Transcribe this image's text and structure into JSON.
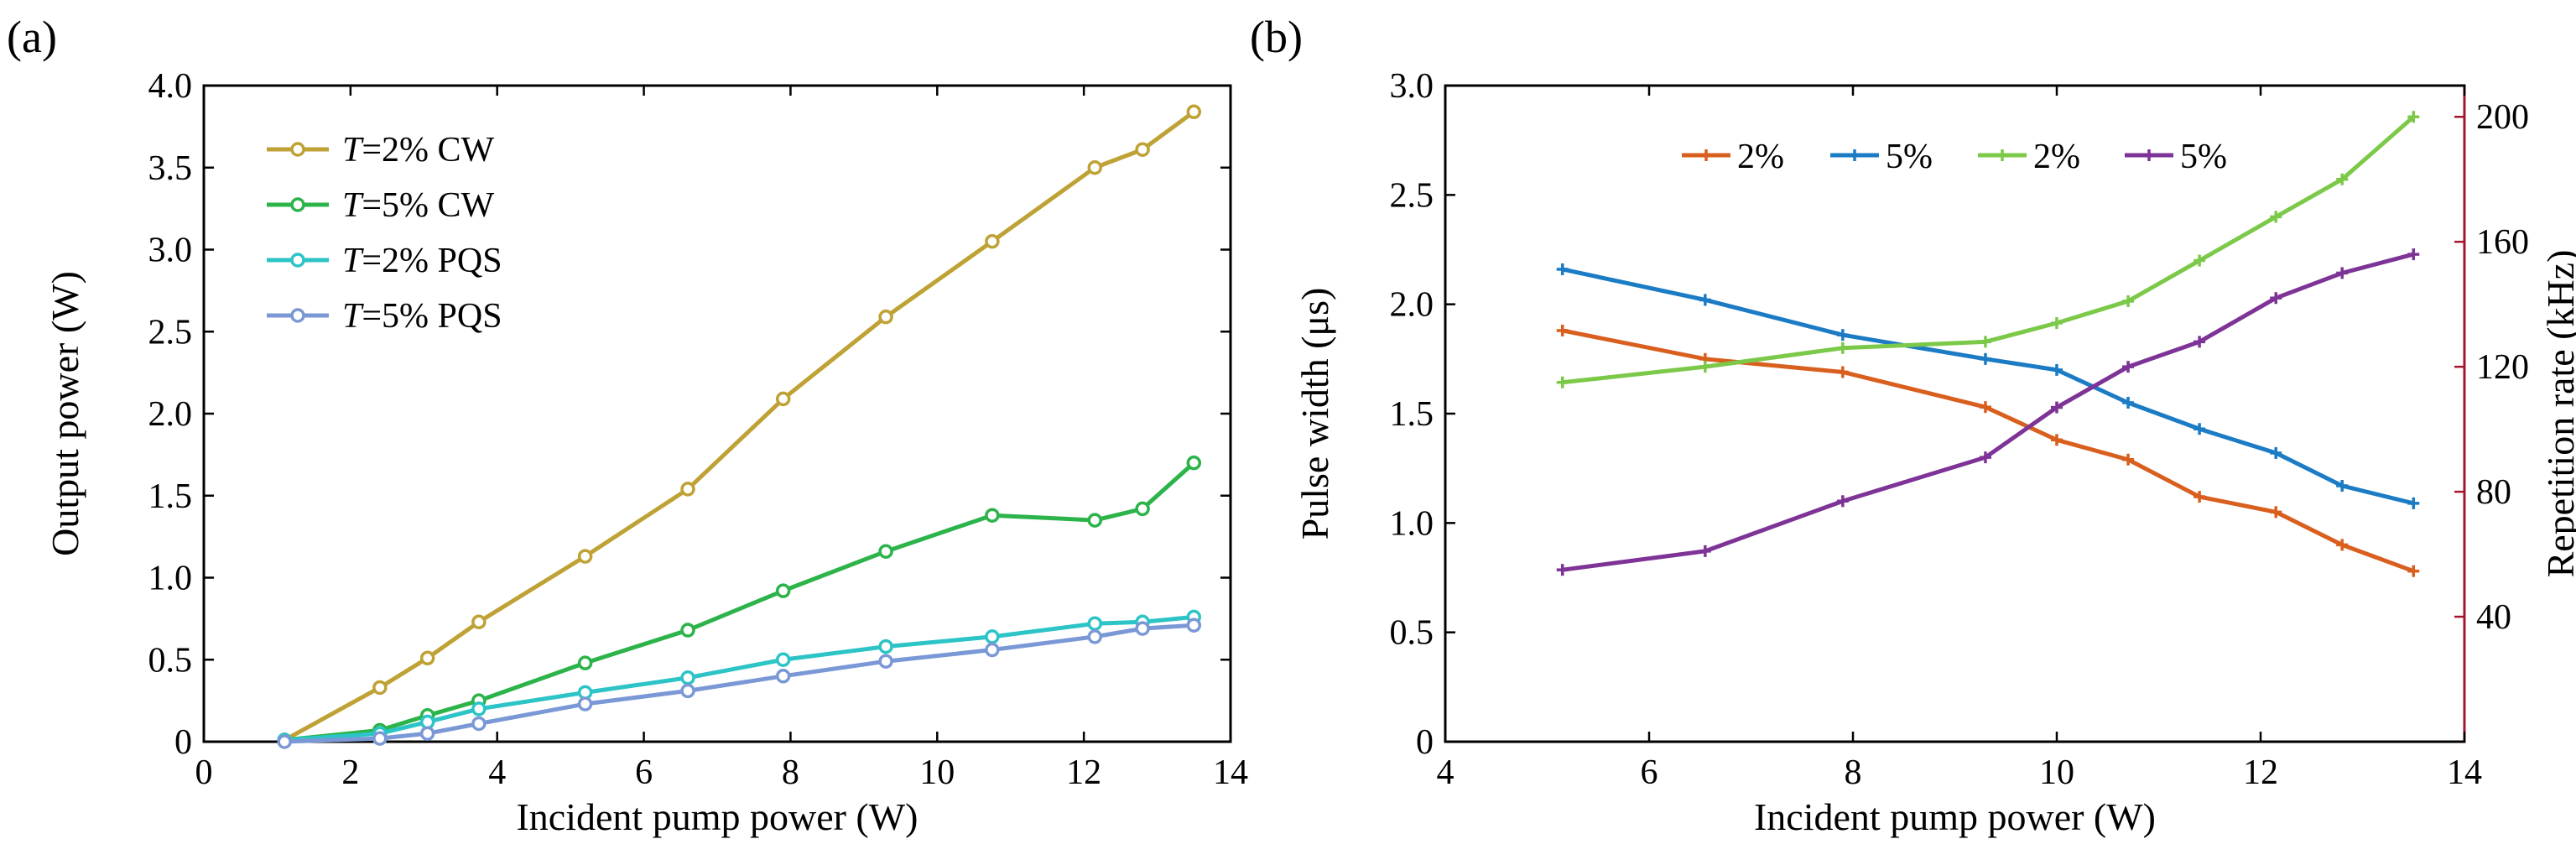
{
  "chart_data": [
    {
      "type": "line",
      "panel_label": "(a)",
      "title": "",
      "xlabel": "Incident pump power (W)",
      "ylabel": "Output power (W)",
      "xlim": [
        0,
        14
      ],
      "ylim": [
        0,
        4.0
      ],
      "xticks": [
        "0",
        "2",
        "4",
        "6",
        "8",
        "10",
        "12",
        "14"
      ],
      "yticks": [
        "0",
        "0.5",
        "1.0",
        "1.5",
        "2.0",
        "2.5",
        "3.0",
        "3.5",
        "4.0"
      ],
      "grid": false,
      "legend_position": "top-left",
      "series": [
        {
          "name": "T=2% CW",
          "legend_italic": "T",
          "legend_rest": "=2% CW",
          "color": "#bfa235",
          "marker": "circle",
          "x": [
            1.1,
            2.4,
            3.05,
            3.75,
            5.2,
            6.6,
            7.9,
            9.3,
            10.75,
            12.15,
            12.8,
            13.5
          ],
          "y": [
            0.01,
            0.33,
            0.51,
            0.73,
            1.13,
            1.54,
            2.09,
            2.59,
            3.05,
            3.5,
            3.61,
            3.84
          ]
        },
        {
          "name": "T=5% CW",
          "legend_italic": "T",
          "legend_rest": "=5% CW",
          "color": "#2cb34a",
          "marker": "circle",
          "x": [
            1.1,
            2.4,
            3.05,
            3.75,
            5.2,
            6.6,
            7.9,
            9.3,
            10.75,
            12.15,
            12.8,
            13.5
          ],
          "y": [
            0.01,
            0.07,
            0.16,
            0.25,
            0.48,
            0.68,
            0.92,
            1.16,
            1.38,
            1.35,
            1.42,
            1.7
          ]
        },
        {
          "name": "T=2% PQS",
          "legend_italic": "T",
          "legend_rest": "=2% PQS",
          "color": "#2cc4c6",
          "marker": "circle",
          "x": [
            1.1,
            2.4,
            3.05,
            3.75,
            5.2,
            6.6,
            7.9,
            9.3,
            10.75,
            12.15,
            12.8,
            13.5
          ],
          "y": [
            0.01,
            0.05,
            0.12,
            0.2,
            0.3,
            0.39,
            0.5,
            0.58,
            0.64,
            0.72,
            0.73,
            0.76
          ]
        },
        {
          "name": "T=5% PQS",
          "legend_italic": "T",
          "legend_rest": "=5% PQS",
          "color": "#7b98d6",
          "marker": "circle",
          "x": [
            1.1,
            2.4,
            3.05,
            3.75,
            5.2,
            6.6,
            7.9,
            9.3,
            10.75,
            12.15,
            12.8,
            13.5
          ],
          "y": [
            0.0,
            0.02,
            0.05,
            0.11,
            0.23,
            0.31,
            0.4,
            0.49,
            0.56,
            0.64,
            0.69,
            0.71
          ]
        }
      ]
    },
    {
      "type": "line",
      "panel_label": "(b)",
      "title": "",
      "xlabel": "Incident pump power (W)",
      "ylabel": "Pulse width (μs)",
      "y2label": "Repetition rate (kHz)",
      "xlim": [
        4,
        14
      ],
      "ylim": [
        0,
        3.0
      ],
      "y2lim": [
        0,
        210
      ],
      "xticks": [
        "4",
        "6",
        "8",
        "10",
        "12",
        "14"
      ],
      "yticks": [
        "0",
        "0.5",
        "1.0",
        "1.5",
        "2.0",
        "2.5",
        "3.0"
      ],
      "y2ticks": [
        "40",
        "80",
        "120",
        "160",
        "200"
      ],
      "right_axis_color": "#a3152c",
      "grid": false,
      "legend_position": "top-center",
      "series": [
        {
          "name": "2%",
          "axis": "left",
          "color": "#d95f1e",
          "marker": "plus",
          "x": [
            5.15,
            6.55,
            7.9,
            9.3,
            10.0,
            10.7,
            11.4,
            12.15,
            12.8,
            13.5
          ],
          "y": [
            1.88,
            1.75,
            1.69,
            1.53,
            1.38,
            1.29,
            1.12,
            1.05,
            0.9,
            0.78
          ]
        },
        {
          "name": "5%",
          "axis": "left",
          "color": "#1b7bc4",
          "marker": "plus",
          "x": [
            5.15,
            6.55,
            7.9,
            9.3,
            10.0,
            10.7,
            11.4,
            12.15,
            12.8,
            13.5
          ],
          "y": [
            2.16,
            2.02,
            1.86,
            1.75,
            1.7,
            1.55,
            1.43,
            1.32,
            1.17,
            1.09
          ]
        },
        {
          "name": "2%",
          "axis": "right",
          "color": "#7cc94a",
          "marker": "plus",
          "x": [
            5.15,
            6.55,
            7.9,
            9.3,
            10.0,
            10.7,
            11.4,
            12.15,
            12.8,
            13.5
          ],
          "y": [
            115,
            120,
            126,
            128,
            134,
            141,
            154,
            168,
            180,
            200
          ]
        },
        {
          "name": "5%",
          "axis": "right",
          "color": "#7e3396",
          "marker": "plus",
          "x": [
            5.15,
            6.55,
            7.9,
            9.3,
            10.0,
            10.7,
            11.4,
            12.15,
            12.8,
            13.5
          ],
          "y": [
            55,
            61,
            77,
            91,
            107,
            120,
            128,
            142,
            150,
            156
          ]
        }
      ]
    }
  ]
}
